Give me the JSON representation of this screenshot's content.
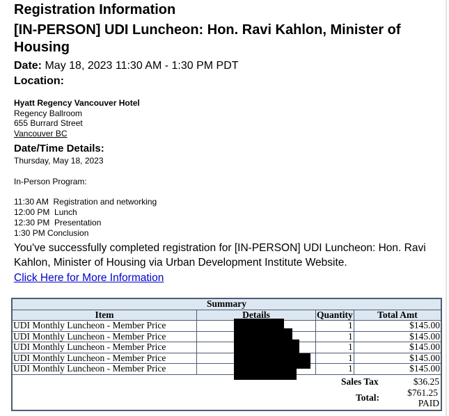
{
  "heading": "Registration Information",
  "title_line1": "[IN-PERSON] UDI Luncheon: Hon. Ravi Kahlon, Minister of",
  "title_line2": "Housing",
  "date_label": "Date:",
  "date_value": "May 18, 2023 11:30 AM - 1:30 PM PDT",
  "location_label": "Location:",
  "location": {
    "venue": "Hyatt Regency Vancouver Hotel",
    "room": "Regency Ballroom",
    "street": "655 Burrard Street",
    "city": "Vancouver BC"
  },
  "datetime_label": "Date/Time Details:",
  "day": "Thursday, May 18, 2023",
  "program_label": "In-Person Program:",
  "schedule": [
    "11:30 AM  Registration and networking",
    "12:00 PM  Lunch",
    "12:30 PM  Presentation",
    "1:30 PM Conclusion"
  ],
  "confirmation_line1": "You've successfully completed registration for [IN-PERSON] UDI Luncheon: Hon. Ravi",
  "confirmation_line2": "Kahlon, Minister of Housing via Urban Development Institute Website.",
  "more_info_link": "Click Here for More Information",
  "summary": {
    "title": "Summary",
    "headers": [
      "Item",
      "Details",
      "Quantity",
      "Total Amt"
    ],
    "rows": [
      {
        "item": "UDI Monthly Luncheon - Member Price",
        "details": "",
        "qty": "1",
        "amt": "$145.00"
      },
      {
        "item": "UDI Monthly Luncheon - Member Price",
        "details": "",
        "qty": "1",
        "amt": "$145.00"
      },
      {
        "item": "UDI Monthly Luncheon - Member Price",
        "details": "",
        "qty": "1",
        "amt": "$145.00"
      },
      {
        "item": "UDI Monthly Luncheon - Member Price",
        "details": "",
        "qty": "1",
        "amt": "$145.00"
      },
      {
        "item": "UDI Monthly Luncheon - Member Price",
        "details": "",
        "qty": "1",
        "amt": "$145.00"
      }
    ],
    "sales_tax_label": "Sales Tax",
    "sales_tax": "$36.25",
    "total_label": "Total:",
    "total": "$761.25",
    "status": "PAID"
  }
}
